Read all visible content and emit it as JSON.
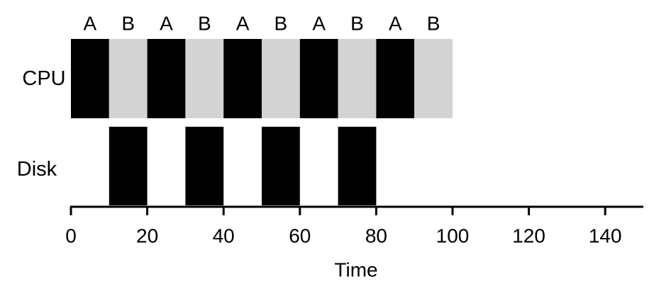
{
  "chart_data": {
    "type": "timeline",
    "xlabel": "Time",
    "xlim": [
      0,
      150
    ],
    "xticks": [
      0,
      20,
      40,
      60,
      80,
      100,
      120,
      140
    ],
    "tick_labels": [
      "0",
      "20",
      "40",
      "60",
      "80",
      "100",
      "120",
      "140"
    ],
    "rows": [
      {
        "label": "CPU",
        "segments": [
          {
            "start": 0,
            "end": 10,
            "job": "A",
            "color": "#000000"
          },
          {
            "start": 10,
            "end": 20,
            "job": "B",
            "color": "#d3d3d3"
          },
          {
            "start": 20,
            "end": 30,
            "job": "A",
            "color": "#000000"
          },
          {
            "start": 30,
            "end": 40,
            "job": "B",
            "color": "#d3d3d3"
          },
          {
            "start": 40,
            "end": 50,
            "job": "A",
            "color": "#000000"
          },
          {
            "start": 50,
            "end": 60,
            "job": "B",
            "color": "#d3d3d3"
          },
          {
            "start": 60,
            "end": 70,
            "job": "A",
            "color": "#000000"
          },
          {
            "start": 70,
            "end": 80,
            "job": "B",
            "color": "#d3d3d3"
          },
          {
            "start": 80,
            "end": 90,
            "job": "A",
            "color": "#000000"
          },
          {
            "start": 90,
            "end": 100,
            "job": "B",
            "color": "#d3d3d3"
          }
        ]
      },
      {
        "label": "Disk",
        "segments": [
          {
            "start": 10,
            "end": 20,
            "color": "#000000"
          },
          {
            "start": 30,
            "end": 40,
            "color": "#000000"
          },
          {
            "start": 50,
            "end": 60,
            "color": "#000000"
          },
          {
            "start": 70,
            "end": 80,
            "color": "#000000"
          }
        ]
      }
    ],
    "colors": {
      "A": "#000000",
      "B": "#d3d3d3",
      "axis": "#000000"
    }
  }
}
